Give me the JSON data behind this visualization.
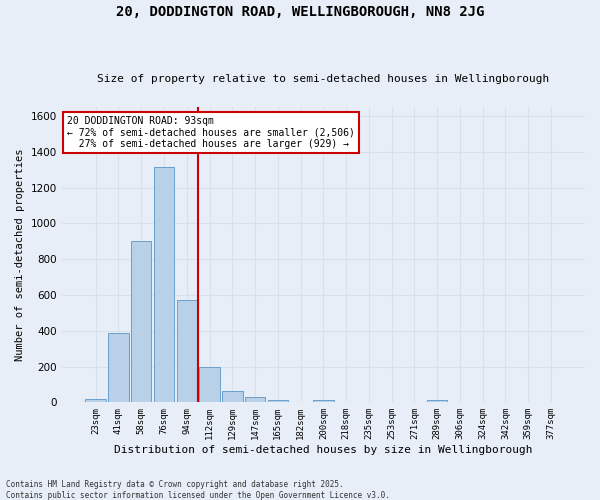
{
  "title": "20, DODDINGTON ROAD, WELLINGBOROUGH, NN8 2JG",
  "subtitle": "Size of property relative to semi-detached houses in Wellingborough",
  "xlabel": "Distribution of semi-detached houses by size in Wellingborough",
  "ylabel": "Number of semi-detached properties",
  "bin_labels": [
    "23sqm",
    "41sqm",
    "58sqm",
    "76sqm",
    "94sqm",
    "112sqm",
    "129sqm",
    "147sqm",
    "165sqm",
    "182sqm",
    "200sqm",
    "218sqm",
    "235sqm",
    "253sqm",
    "271sqm",
    "289sqm",
    "306sqm",
    "324sqm",
    "342sqm",
    "359sqm",
    "377sqm"
  ],
  "bar_values": [
    20,
    385,
    900,
    1315,
    570,
    200,
    65,
    30,
    15,
    0,
    12,
    0,
    0,
    0,
    0,
    12,
    0,
    0,
    0,
    0,
    0
  ],
  "bar_color": "#b8d0e8",
  "bar_edge_color": "#6aa0cc",
  "vline_x": 4.5,
  "annotation_text": "20 DODDINGTON ROAD: 93sqm\n← 72% of semi-detached houses are smaller (2,506)\n  27% of semi-detached houses are larger (929) →",
  "annotation_box_color": "#ffffff",
  "annotation_box_edge_color": "#cc0000",
  "ylim": [
    0,
    1650
  ],
  "vline_color": "#cc0000",
  "background_color": "#e8eef8",
  "grid_color": "#d8e0ec",
  "footer_line1": "Contains HM Land Registry data © Crown copyright and database right 2025.",
  "footer_line2": "Contains public sector information licensed under the Open Government Licence v3.0."
}
